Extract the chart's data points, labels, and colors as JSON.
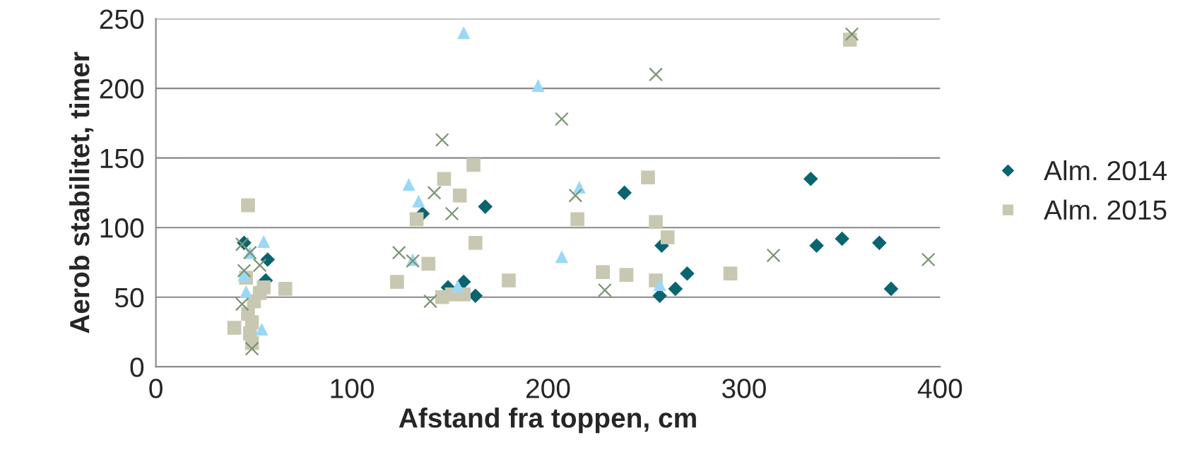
{
  "chart_data": {
    "type": "scatter",
    "xlabel": "Afstand fra toppen, cm",
    "ylabel": "Aerob stabilitet, timer",
    "xlim": [
      0,
      400
    ],
    "xticks": [
      0,
      100,
      200,
      300,
      400
    ],
    "ylim": [
      0,
      250
    ],
    "yticks": [
      0,
      50,
      100,
      150,
      200,
      250
    ],
    "grid": "y",
    "legend": "right",
    "series": [
      {
        "name": "Alm. 2014",
        "color": "#0a6470",
        "marker": "diamond",
        "x": [
          45,
          47,
          56,
          57,
          136,
          149,
          157,
          163,
          168,
          239,
          257,
          258,
          265,
          271,
          334,
          337,
          350,
          369,
          375
        ],
        "values": [
          89,
          null,
          62,
          77,
          110,
          57,
          61,
          51,
          115,
          125,
          51,
          87,
          56,
          67,
          135,
          87,
          92,
          89,
          56
        ]
      },
      {
        "name": "Alm. 2015",
        "color": "#c8c8b2",
        "marker": "square",
        "x": [
          40,
          47,
          46,
          47,
          48,
          49,
          49,
          50,
          53,
          55,
          66,
          123,
          133,
          139,
          146,
          147,
          151,
          155,
          157,
          162,
          163,
          180,
          215,
          228,
          240,
          251,
          255,
          255,
          261,
          293,
          354
        ],
        "values": [
          28,
          116,
          64,
          38,
          24,
          17,
          32,
          47,
          53,
          57,
          56,
          61,
          106,
          74,
          50,
          135,
          52,
          123,
          52,
          145,
          89,
          62,
          106,
          68,
          66,
          136,
          62,
          104,
          93,
          67,
          235
        ]
      },
      {
        "color": "#9ad8f5",
        "marker": "triangle",
        "x": [
          55,
          48,
          45,
          46,
          54,
          157,
          129,
          134,
          131,
          154,
          195,
          216,
          207,
          257
        ],
        "values": [
          90,
          82,
          66,
          54,
          27,
          240,
          131,
          119,
          77,
          58,
          202,
          129,
          79,
          59
        ]
      },
      {
        "color": "#7a9470",
        "marker": "cross",
        "x": [
          44,
          45,
          48,
          44,
          49,
          53,
          124,
          131,
          140,
          142,
          146,
          151,
          207,
          214,
          229,
          255,
          315,
          355,
          394
        ],
        "values": [
          88,
          69,
          82,
          45,
          13,
          73,
          82,
          76,
          47,
          125,
          163,
          110,
          178,
          123,
          55,
          210,
          80,
          239,
          77
        ]
      }
    ]
  }
}
